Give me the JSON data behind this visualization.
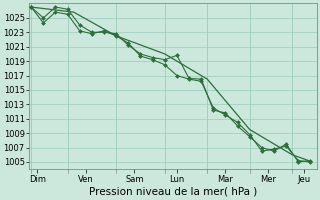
{
  "background_color": "#cce8dd",
  "grid_color": "#99ccbb",
  "line_color": "#2d6e3a",
  "marker_color": "#2d6e3a",
  "xlabel": "Pression niveau de la mer( hPa )",
  "ylim": [
    1004,
    1027
  ],
  "yticks": [
    1005,
    1007,
    1009,
    1011,
    1013,
    1015,
    1017,
    1019,
    1021,
    1023,
    1025
  ],
  "day_labels": [
    "Dim",
    "Ven",
    "Sam",
    "Lun",
    "Mar",
    "Mer",
    "Jeu"
  ],
  "series1_x": [
    0,
    1,
    2,
    3,
    4,
    5,
    6,
    7,
    8,
    9,
    10,
    11,
    12,
    13,
    14,
    15,
    16,
    17,
    18,
    19,
    20,
    21,
    22,
    23
  ],
  "series1_y": [
    1026.5,
    1025.0,
    1026.5,
    1026.2,
    1024.0,
    1023.0,
    1023.0,
    1022.8,
    1021.2,
    1020.0,
    1019.5,
    1019.2,
    1019.8,
    1016.6,
    1016.5,
    1012.2,
    1011.8,
    1010.0,
    1008.5,
    1007.0,
    1006.5,
    1007.5,
    1005.0,
    1005.2
  ],
  "series2_x": [
    0,
    1,
    2,
    3,
    4,
    5,
    6,
    7,
    8,
    9,
    10,
    11,
    12,
    13,
    14,
    15,
    16,
    17,
    18,
    19,
    20,
    21,
    22,
    23
  ],
  "series2_y": [
    1026.5,
    1024.3,
    1025.8,
    1025.5,
    1023.2,
    1022.8,
    1023.2,
    1022.5,
    1021.5,
    1019.7,
    1019.2,
    1018.5,
    1017.0,
    1016.5,
    1016.2,
    1012.5,
    1011.5,
    1010.5,
    1008.8,
    1006.5,
    1006.8,
    1007.2,
    1005.2,
    1005.0
  ],
  "series3_x": [
    0,
    3.5,
    7,
    11,
    14.5,
    18,
    21.5,
    23
  ],
  "series3_y": [
    1026.5,
    1025.8,
    1022.5,
    1020.0,
    1016.5,
    1009.5,
    1006.0,
    1005.1
  ],
  "day_vline_positions": [
    0,
    3,
    7,
    11,
    14.5,
    18,
    21.5
  ],
  "xlabel_fontsize": 7.5,
  "tick_fontsize": 6,
  "figsize": [
    3.2,
    2.0
  ],
  "dpi": 100
}
